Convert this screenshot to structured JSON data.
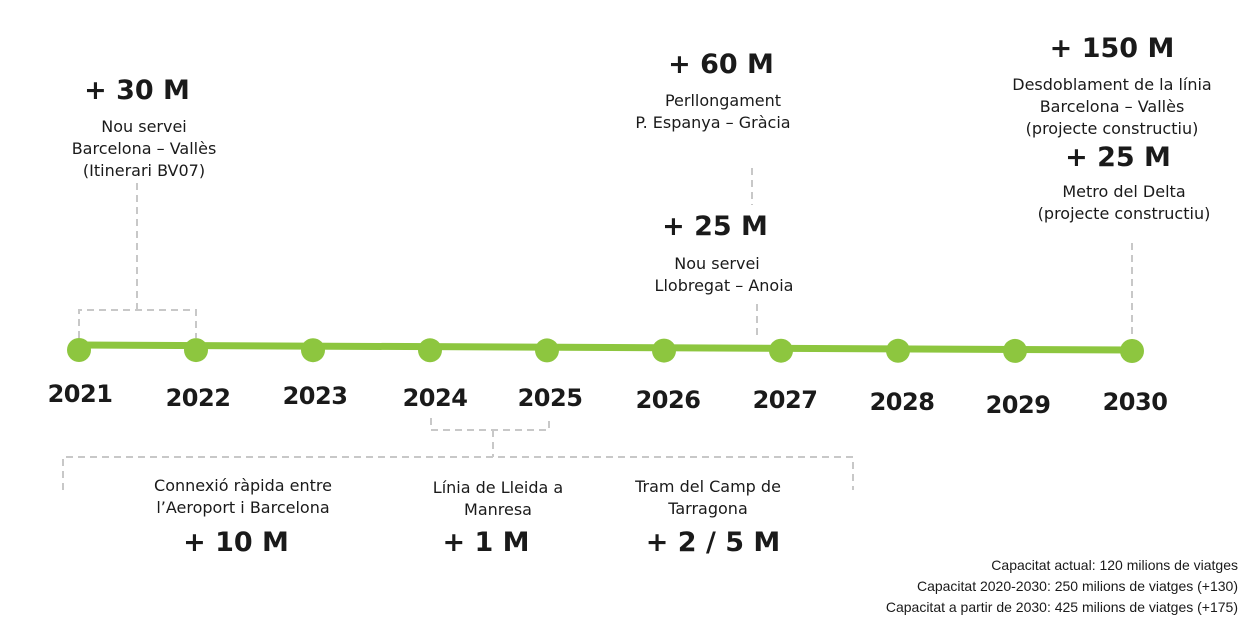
{
  "colors": {
    "accent_green": "#8dc63f",
    "connector_gray": "#c8c8c8",
    "text": "#1a1a1a"
  },
  "years": [
    "2021",
    "2022",
    "2023",
    "2024",
    "2025",
    "2026",
    "2027",
    "2028",
    "2029",
    "2030"
  ],
  "annotations": {
    "a2021": {
      "value": "+ 30 M",
      "desc": [
        "Nou servei",
        "Barcelona – Vallès",
        "(Itinerari BV07)"
      ]
    },
    "a2027_upper": {
      "value": "+ 60 M",
      "desc": [
        "Perllongament",
        "P. Espanya – Gràcia"
      ]
    },
    "a2027_lower": {
      "value": "+ 25 M",
      "desc": [
        "Nou servei",
        "Llobregat – Anoia"
      ]
    },
    "a2030_upper": {
      "value": "+ 150 M",
      "desc": [
        "Desdoblament de la línia",
        "Barcelona – Vallès",
        "(projecte constructiu)"
      ]
    },
    "a2030_lower": {
      "value": "+ 25 M",
      "desc": [
        "Metro del Delta",
        "(projecte constructiu)"
      ]
    },
    "b_aeroport": {
      "value": "+ 10 M",
      "desc": [
        "Connexió ràpida entre",
        "l’Aeroport i Barcelona"
      ]
    },
    "b_lleida": {
      "value": "+ 1 M",
      "desc": [
        "Línia de Lleida a",
        "Manresa"
      ]
    },
    "b_tarragona": {
      "value": "+ 2 / 5 M",
      "desc": [
        "Tram del Camp de",
        "Tarragona"
      ]
    }
  },
  "capacity": [
    "Capacitat actual: 120 milions de viatges",
    "Capacitat 2020-2030: 250 milions de viatges (+130)",
    "Capacitat a partir de 2030:  425 milions de viatges (+175)"
  ]
}
